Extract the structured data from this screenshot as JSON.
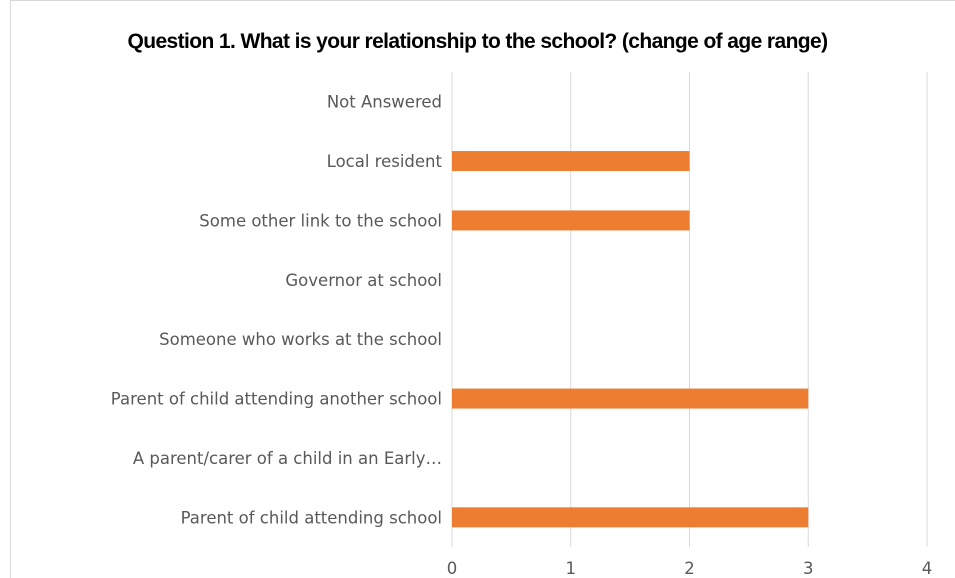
{
  "chart_data": {
    "type": "bar",
    "orientation": "horizontal",
    "title": "Question 1. What is your relationship to the school? (change of age range)",
    "categories": [
      "Parent of child attending school",
      "A parent/carer of a child in an Early…",
      "Parent of child attending another school",
      "Someone who works at the school",
      "Governor at school",
      "Some other link to the school",
      "Local resident",
      "Not Answered"
    ],
    "values": [
      3,
      0,
      3,
      0,
      0,
      2,
      2,
      0
    ],
    "xlim": [
      0,
      4
    ],
    "xticks": [
      "0",
      "1",
      "2",
      "3",
      "4"
    ],
    "bar_color": "#ed7d31",
    "grid": true,
    "grid_color": "#d9d9d9",
    "legend": "none"
  }
}
